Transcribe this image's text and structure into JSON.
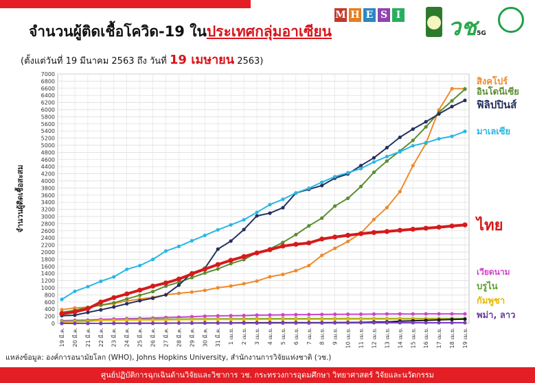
{
  "title": {
    "main": "จำนวนผู้ติดเชื้อโควิด-19 ใน",
    "highlight": "ประเทศกลุ่มอาเซียน"
  },
  "subtitle": {
    "prefix": "(ตั้งแต่วันที่ 19 มีนาคม 2563 ถึง วันที่",
    "date": "19 เมษายน",
    "suffix": "2563)"
  },
  "logos": {
    "mhesi": [
      "M",
      "H",
      "E",
      "S",
      "I"
    ],
    "mhesi_colors": [
      "#c0392b",
      "#e67e22",
      "#2e86c1",
      "#8e44ad",
      "#27ae60"
    ],
    "five_g": "วช",
    "five_g_sub": "5G"
  },
  "source": "แหล่งข้อมูล: องค์การอนามัยโลก (WHO), Johns Hopkins University, สำนักงานการวิจัยแห่งชาติ (วช.)",
  "footer": "ศูนย์ปฏิบัติการฉุกเฉินด้านวิจัยและวิชาการ  วช.  กระทรวงการอุดมศึกษา วิทยาศาสตร์ วิจัยและนวัตกรรม",
  "chart_data": {
    "type": "line",
    "ylabel": "จำนวนผู้ติดเชื้อสะสม",
    "ylim": [
      0,
      7000
    ],
    "ytick_step": 200,
    "grid": true,
    "x": [
      "19 มี.ค.",
      "20 มี.ค.",
      "21 มี.ค.",
      "22 มี.ค.",
      "23 มี.ค.",
      "24 มี.ค.",
      "25 มี.ค.",
      "26 มี.ค.",
      "27 มี.ค.",
      "28 มี.ค.",
      "29 มี.ค.",
      "30 มี.ค.",
      "31 มี.ค.",
      "1 เม.ย.",
      "2 เม.ย.",
      "3 เม.ย.",
      "4 เม.ย.",
      "5 เม.ย.",
      "6 เม.ย.",
      "7 เม.ย.",
      "8 เม.ย.",
      "9 เม.ย.",
      "10 เม.ย.",
      "11 เม.ย.",
      "12 เม.ย.",
      "13 เม.ย.",
      "14 เม.ย.",
      "15 เม.ย.",
      "16 เม.ย.",
      "17 เม.ย.",
      "18 เม.ย.",
      "19 เม.ย."
    ],
    "series": [
      {
        "name": "สิงคโปร์",
        "color": "#ee8a2a",
        "width": 2,
        "values": [
          385,
          432,
          455,
          507,
          558,
          631,
          683,
          732,
          802,
          844,
          879,
          926,
          1000,
          1049,
          1114,
          1189,
          1309,
          1375,
          1481,
          1623,
          1910,
          2108,
          2299,
          2532,
          2918,
          3252,
          3699,
          4427,
          5050,
          5992,
          6588,
          6588
        ]
      },
      {
        "name": "อินโดนีเซีย",
        "color": "#5a8c33",
        "width": 2,
        "values": [
          309,
          369,
          450,
          514,
          579,
          686,
          790,
          893,
          1046,
          1155,
          1285,
          1414,
          1528,
          1677,
          1790,
          1986,
          2092,
          2273,
          2491,
          2738,
          2956,
          3293,
          3512,
          3842,
          4241,
          4557,
          4839,
          5136,
          5516,
          5923,
          6248,
          6575
        ]
      },
      {
        "name": "ฟิลิปปินส์",
        "color": "#24305e",
        "width": 2,
        "values": [
          217,
          230,
          307,
          380,
          462,
          552,
          636,
          707,
          803,
          1075,
          1418,
          1546,
          2084,
          2311,
          2633,
          3018,
          3094,
          3246,
          3660,
          3764,
          3870,
          4076,
          4195,
          4428,
          4648,
          4932,
          5223,
          5453,
          5660,
          5878,
          6087,
          6259
        ]
      },
      {
        "name": "มาเลเซีย",
        "color": "#29b6e6",
        "width": 2,
        "values": [
          673,
          900,
          1030,
          1183,
          1306,
          1518,
          1624,
          1796,
          2031,
          2161,
          2320,
          2470,
          2626,
          2766,
          2908,
          3116,
          3333,
          3483,
          3662,
          3793,
          3963,
          4119,
          4228,
          4346,
          4530,
          4683,
          4817,
          4987,
          5072,
          5182,
          5251,
          5389
        ]
      },
      {
        "name": "ไทย",
        "color": "#d61a1a",
        "width": 4,
        "values": [
          272,
          322,
          411,
          599,
          721,
          827,
          934,
          1045,
          1136,
          1245,
          1388,
          1524,
          1651,
          1771,
          1875,
          1978,
          2067,
          2169,
          2220,
          2258,
          2369,
          2423,
          2473,
          2518,
          2551,
          2579,
          2613,
          2643,
          2672,
          2700,
          2733,
          2765
        ]
      },
      {
        "name": "เวียดนาม",
        "color": "#cc44cc",
        "width": 2,
        "values": [
          76,
          87,
          94,
          113,
          123,
          134,
          141,
          148,
          163,
          174,
          188,
          203,
          212,
          218,
          222,
          233,
          237,
          240,
          245,
          249,
          251,
          255,
          257,
          258,
          262,
          265,
          265,
          266,
          268,
          268,
          268,
          268
        ]
      },
      {
        "name": "บรูไน",
        "color": "#66aa44",
        "width": 2,
        "values": [
          56,
          68,
          78,
          86,
          91,
          104,
          109,
          114,
          115,
          120,
          126,
          127,
          129,
          131,
          133,
          135,
          135,
          135,
          135,
          135,
          135,
          135,
          136,
          136,
          136,
          136,
          136,
          136,
          136,
          136,
          137,
          138
        ]
      },
      {
        "name": "กัมพูชา",
        "color": "#e6b800",
        "width": 2,
        "values": [
          35,
          47,
          53,
          84,
          87,
          91,
          96,
          96,
          99,
          103,
          107,
          107,
          109,
          109,
          110,
          114,
          114,
          115,
          115,
          115,
          117,
          117,
          119,
          120,
          120,
          122,
          122,
          122,
          122,
          122,
          122,
          122
        ]
      },
      {
        "name": "พม่า",
        "color": "#1a1a1a",
        "width": 2,
        "values": [
          0,
          0,
          0,
          0,
          3,
          3,
          5,
          5,
          8,
          10,
          10,
          14,
          15,
          15,
          20,
          20,
          21,
          21,
          22,
          22,
          22,
          23,
          27,
          28,
          38,
          41,
          62,
          74,
          85,
          98,
          111,
          119
        ]
      },
      {
        "name": "ลาว",
        "color": "#7a3fbf",
        "width": 2,
        "values": [
          0,
          0,
          0,
          0,
          0,
          2,
          3,
          6,
          6,
          8,
          8,
          8,
          9,
          10,
          10,
          10,
          10,
          11,
          11,
          12,
          12,
          15,
          16,
          18,
          19,
          19,
          19,
          19,
          19,
          19,
          19,
          19
        ]
      }
    ],
    "legend": [
      {
        "text": "สิงคโปร์",
        "color": "#ee8a2a"
      },
      {
        "text": "อินโดนีเซีย",
        "color": "#5a8c33"
      },
      {
        "text": "ฟิลิปปินส์",
        "color": "#24305e"
      },
      {
        "text": "มาเลเซีย",
        "color": "#29b6e6"
      },
      {
        "text": "ไทย",
        "color": "#d61a1a"
      },
      {
        "text": "เวียดนาม",
        "color": "#cc44cc"
      },
      {
        "text": "บรูไน",
        "color": "#5a9e2e"
      },
      {
        "text": "กัมพูชา",
        "color": "#e6b800"
      },
      {
        "text": "พม่า, ลาว",
        "color": "#6a3c9c"
      }
    ]
  }
}
